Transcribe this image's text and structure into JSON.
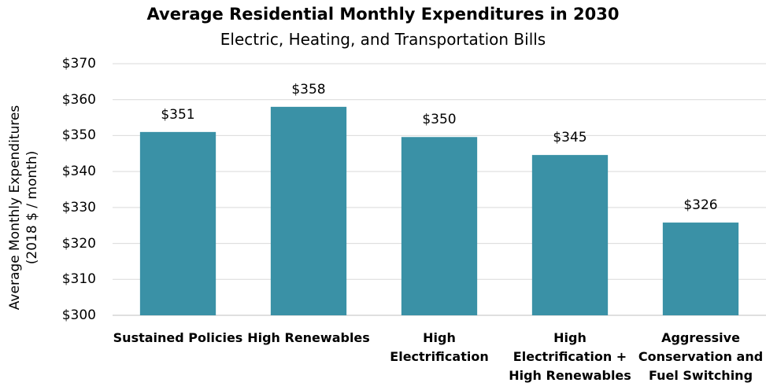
{
  "chart_data": {
    "type": "bar",
    "title": "Average Residential Monthly Expenditures in 2030",
    "subtitle": "Electric, Heating, and Transportation Bills",
    "y_label": "Average Monthly Expenditures\n(2018 $ / month)",
    "categories": [
      "Sustained Policies",
      "High Renewables",
      "High\nElectrification",
      "High\nElectrification +\nHigh Renewables",
      "Aggressive\nConservation and\nFuel Switching"
    ],
    "values": [
      351,
      358,
      349.6,
      344.6,
      325.8
    ],
    "value_labels": [
      "$351",
      "$358",
      "$350",
      "$345",
      "$326"
    ],
    "color": "#3a91a6",
    "ylim": [
      300,
      370
    ],
    "yticks": [
      {
        "value": 300,
        "label": "$300"
      },
      {
        "value": 310,
        "label": "$310"
      },
      {
        "value": 320,
        "label": "$320"
      },
      {
        "value": 330,
        "label": "$330"
      },
      {
        "value": 340,
        "label": "$340"
      },
      {
        "value": 350,
        "label": "$350"
      },
      {
        "value": 360,
        "label": "$360"
      },
      {
        "value": 370,
        "label": "$370"
      }
    ],
    "grid": true
  }
}
